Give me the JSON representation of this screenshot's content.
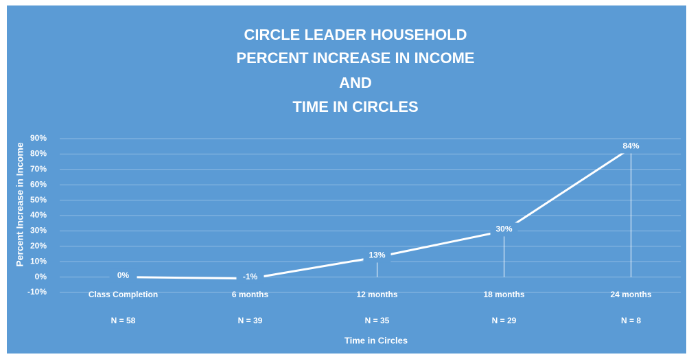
{
  "chart_data": {
    "type": "line",
    "title": [
      "CIRCLE LEADER HOUSEHOLD",
      "PERCENT INCREASE IN INCOME",
      "AND",
      "TIME IN CIRCLES"
    ],
    "x_label": "Time in Circles",
    "y_label": "Percent Increase in Income",
    "categories": [
      "Class Completion",
      "6 months",
      "12 months",
      "18 months",
      "24 months"
    ],
    "sample_sizes": [
      "N = 58",
      "N = 39",
      "N = 35",
      "N = 29",
      "N = 8"
    ],
    "values": [
      0,
      -1,
      13,
      30,
      84
    ],
    "value_labels": [
      "0%",
      "-1%",
      "13%",
      "30%",
      "84%"
    ],
    "color": "#ffffff",
    "background": "#5b9bd5",
    "ylim": [
      -10,
      90
    ],
    "yticks": [
      {
        "value": -10,
        "label": "-10%"
      },
      {
        "value": 0,
        "label": "0%"
      },
      {
        "value": 10,
        "label": "10%"
      },
      {
        "value": 20,
        "label": "20%"
      },
      {
        "value": 30,
        "label": "30%"
      },
      {
        "value": 40,
        "label": "40%"
      },
      {
        "value": 50,
        "label": "50%"
      },
      {
        "value": 60,
        "label": "60%"
      },
      {
        "value": 70,
        "label": "70%"
      },
      {
        "value": 80,
        "label": "80%"
      },
      {
        "value": 90,
        "label": "90%"
      }
    ],
    "grid": true,
    "drop_lines": true
  }
}
